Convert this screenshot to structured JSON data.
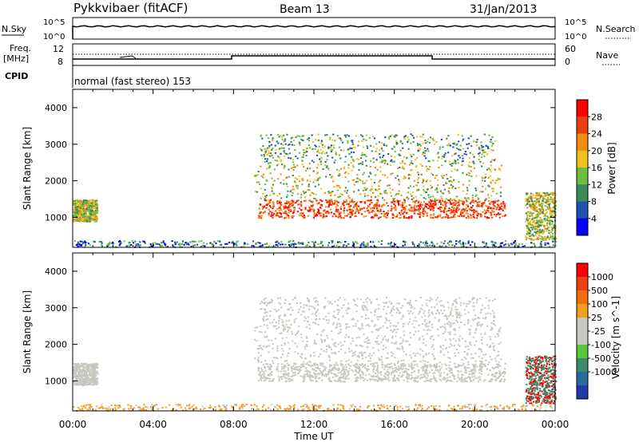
{
  "header": {
    "title": "Pykkvibaer (fitACF)",
    "beam": "Beam 13",
    "date": "31/Jan/2013"
  },
  "noise_panel": {
    "left_label": "N.Sky",
    "left_ticks": [
      "10^5",
      "10^0"
    ],
    "right_ticks": [
      "10^5",
      "10^0"
    ],
    "right_label": "N.Search"
  },
  "freq_panel": {
    "left_label_1": "Freq.",
    "left_label_2": "[MHz]",
    "left_ticks": [
      "12",
      "8"
    ],
    "right_ticks": [
      "60",
      "0"
    ],
    "right_label": "Nave"
  },
  "cpid": {
    "label": "CPID",
    "text": "normal (fast stereo) 153"
  },
  "chart_data": [
    {
      "type": "heatmap",
      "name": "Power",
      "ylabel": "Slant Range [km]",
      "yticks": [
        "4000",
        "3000",
        "2000",
        "1000"
      ],
      "ytick_values": [
        4000,
        3000,
        2000,
        1000
      ],
      "ylim": [
        180,
        4500
      ],
      "xlabel": "Time UT",
      "xticks": [
        "00:00",
        "04:00",
        "08:00",
        "12:00",
        "16:00",
        "20:00",
        "00:00"
      ],
      "xlim_hours": [
        0,
        24
      ],
      "colorbar": {
        "label": "Power [dB]",
        "ticks": [
          "28",
          "24",
          "20",
          "16",
          "12",
          "8",
          "4"
        ],
        "range": [
          0,
          32
        ],
        "colors": [
          "#0000ff",
          "#2050b0",
          "#3a8a5a",
          "#6cc040",
          "#f0c020",
          "#f08c10",
          "#e84010",
          "#ff0000"
        ]
      }
    },
    {
      "type": "heatmap",
      "name": "Velocity",
      "ylabel": "Slant Range [km]",
      "yticks": [
        "4000",
        "3000",
        "2000",
        "1000"
      ],
      "ytick_values": [
        4000,
        3000,
        2000,
        1000
      ],
      "ylim": [
        180,
        4500
      ],
      "xlabel": "Time UT",
      "xticks": [
        "00:00",
        "04:00",
        "08:00",
        "12:00",
        "16:00",
        "20:00",
        "00:00"
      ],
      "xlim_hours": [
        0,
        24
      ],
      "colorbar": {
        "label": "Velocity [m s^-1]",
        "ticks": [
          "1000",
          "500",
          "100",
          "25",
          "-25",
          "-100",
          "-500",
          "-1000"
        ],
        "colors": [
          "#1e3ca8",
          "#2a6aa0",
          "#3f8a6a",
          "#5ac83a",
          "#c8c8c0",
          "#c8c8c0",
          "#f0a020",
          "#f07010",
          "#f04010",
          "#ff0000"
        ]
      }
    }
  ]
}
